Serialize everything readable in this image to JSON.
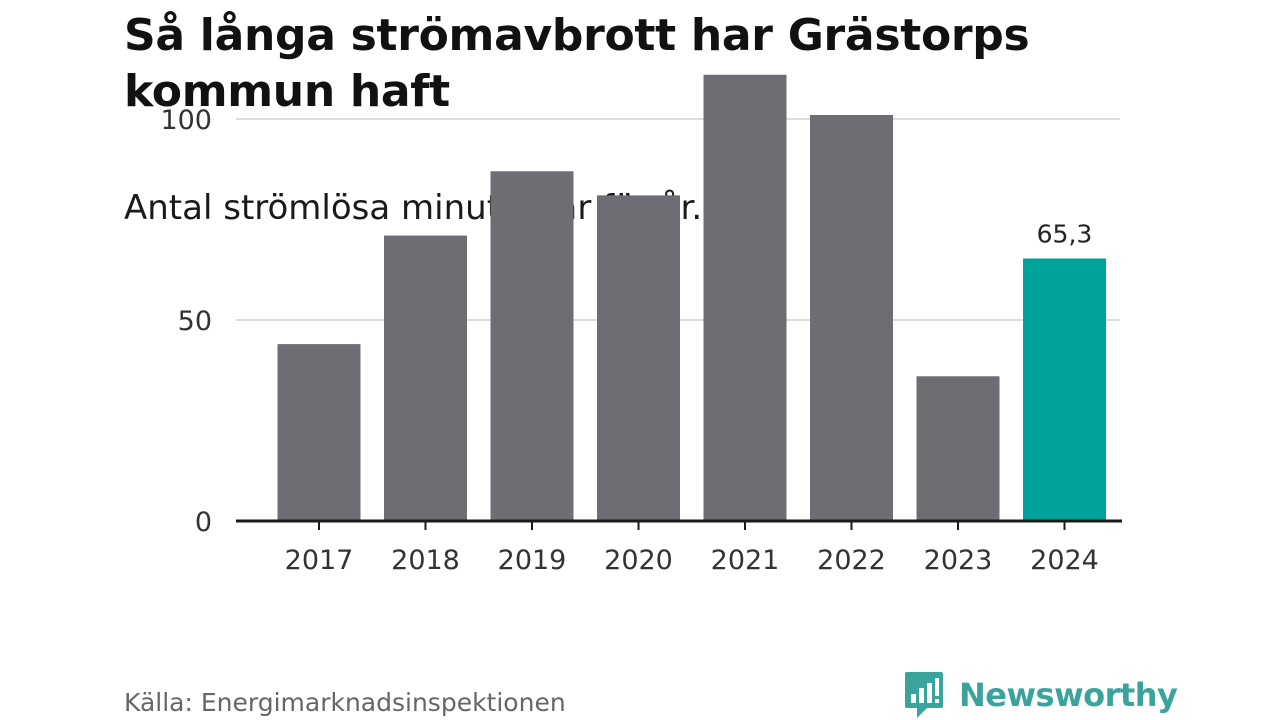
{
  "title": "Så långa strömavbrott har Grästorps kommun haft",
  "subtitle": "Antal strömlösa minuter, år för år.",
  "source": "Källa: Energimarknadsinspektionen",
  "brand": {
    "name": "Newsworthy",
    "icon": "newsworthy-logo-icon",
    "color": "#3aa49c"
  },
  "colors": {
    "bar": "#6e6d74",
    "highlight": "#00a39b",
    "grid": "#dddddd",
    "axis": "#1a1a1a"
  },
  "chart_data": {
    "type": "bar",
    "categories": [
      "2017",
      "2018",
      "2019",
      "2020",
      "2021",
      "2022",
      "2023",
      "2024"
    ],
    "values": [
      44,
      71,
      87,
      81,
      111,
      101,
      36,
      65.3
    ],
    "highlight_index": 7,
    "data_labels": [
      {
        "index": 7,
        "text": "65,3"
      }
    ],
    "ylim": [
      0,
      120
    ],
    "yticks": [
      0,
      50,
      100
    ],
    "ytick_labels": [
      "0",
      "50",
      "100"
    ],
    "grid": true,
    "xlabel": "",
    "ylabel": ""
  }
}
